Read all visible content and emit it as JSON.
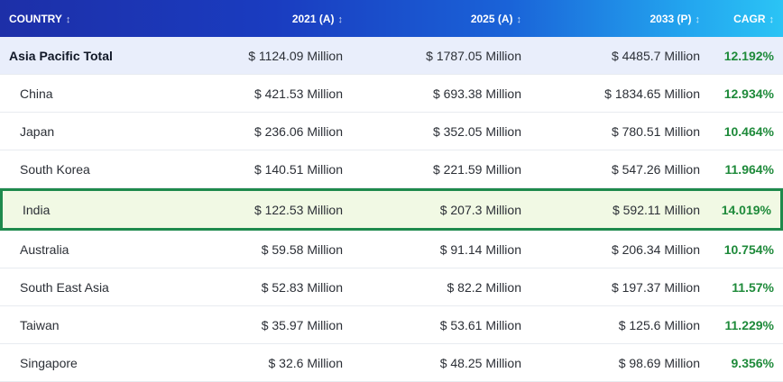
{
  "table": {
    "headers": [
      {
        "label": "COUNTRY",
        "sort_icon": "↕"
      },
      {
        "label": "2021 (A)",
        "sort_icon": "↕"
      },
      {
        "label": "2025 (A)",
        "sort_icon": "↕"
      },
      {
        "label": "2033 (P)",
        "sort_icon": "↕"
      },
      {
        "label": "CAGR",
        "sort_icon": "↕"
      }
    ],
    "rows": [
      {
        "country": "Asia Pacific Total",
        "v2021": "$ 1124.09 Million",
        "v2025": "$ 1787.05 Million",
        "v2033": "$ 4485.7 Million",
        "cagr": "12.192%",
        "type": "total"
      },
      {
        "country": "China",
        "v2021": "$ 421.53 Million",
        "v2025": "$ 693.38 Million",
        "v2033": "$ 1834.65 Million",
        "cagr": "12.934%",
        "type": "normal"
      },
      {
        "country": "Japan",
        "v2021": "$ 236.06 Million",
        "v2025": "$ 352.05 Million",
        "v2033": "$ 780.51 Million",
        "cagr": "10.464%",
        "type": "normal"
      },
      {
        "country": "South Korea",
        "v2021": "$ 140.51 Million",
        "v2025": "$ 221.59 Million",
        "v2033": "$ 547.26 Million",
        "cagr": "11.964%",
        "type": "normal"
      },
      {
        "country": "India",
        "v2021": "$ 122.53 Million",
        "v2025": "$ 207.3 Million",
        "v2033": "$ 592.11 Million",
        "cagr": "14.019%",
        "type": "highlight"
      },
      {
        "country": "Australia",
        "v2021": "$ 59.58 Million",
        "v2025": "$ 91.14 Million",
        "v2033": "$ 206.34 Million",
        "cagr": "10.754%",
        "type": "normal"
      },
      {
        "country": "South East Asia",
        "v2021": "$ 52.83 Million",
        "v2025": "$ 82.2 Million",
        "v2033": "$ 197.37 Million",
        "cagr": "11.57%",
        "type": "normal"
      },
      {
        "country": "Taiwan",
        "v2021": "$ 35.97 Million",
        "v2025": "$ 53.61 Million",
        "v2033": "$ 125.6 Million",
        "cagr": "11.229%",
        "type": "normal"
      },
      {
        "country": "Singapore",
        "v2021": "$ 32.6 Million",
        "v2025": "$ 48.25 Million",
        "v2033": "$ 98.69 Million",
        "cagr": "9.356%",
        "type": "normal"
      }
    ]
  },
  "colors": {
    "header_gradient_start": "#1d2fa8",
    "header_gradient_end": "#2bc4f5",
    "total_row_bg": "#e9eefb",
    "highlight_row_bg": "#f1f9e4",
    "highlight_border": "#1e8a4c",
    "cagr_text": "#1e8a3a"
  }
}
